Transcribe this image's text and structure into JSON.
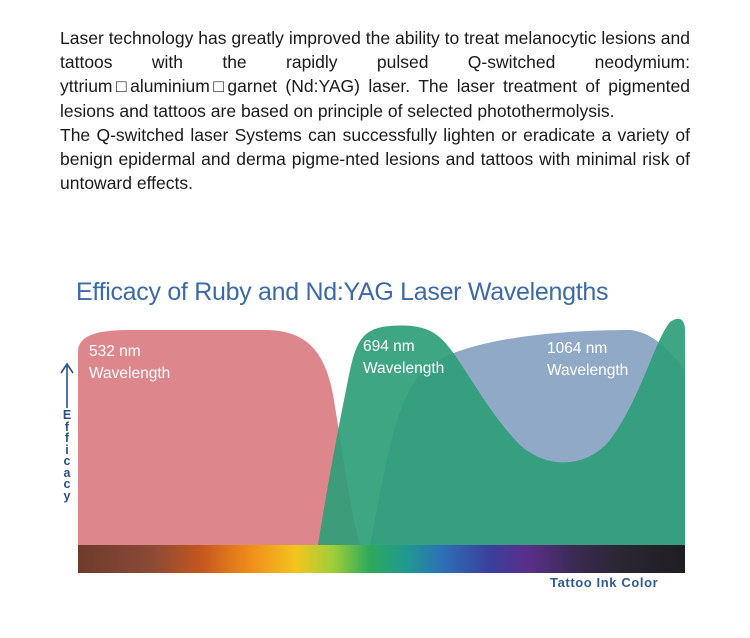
{
  "paragraphs": [
    "Laser technology has greatly improved the ability to treat melanocytic lesions and tattoos with the rapidly pulsed Q-switched neodymium: yttrium□aluminium□garnet (Nd:YAG) laser. The laser treatment of pigmented lesions and tattoos are based on principle of selected photothermolysis.",
    "The Q-switched laser Systems can successfully lighten or eradicate a variety of benign epidermal and derma pigme-nted lesions and tattoos with minimal risk of untoward effects."
  ],
  "figure": {
    "title": "Efficacy of Ruby and Nd:YAG Laser Wavelengths",
    "y_axis_letters": [
      "E",
      "f",
      "f",
      "i",
      "c",
      "a",
      "c",
      "y"
    ],
    "x_axis_caption": "Tattoo Ink Color",
    "curves": [
      {
        "line1": "532 nm",
        "line2": "Wavelength",
        "color": "#dc8287"
      },
      {
        "line1": "694 nm",
        "line2": "Wavelength",
        "color": "#2f9e7a"
      },
      {
        "line1": "1064 nm",
        "line2": "Wavelength",
        "color": "#8fa9c6"
      }
    ]
  }
}
